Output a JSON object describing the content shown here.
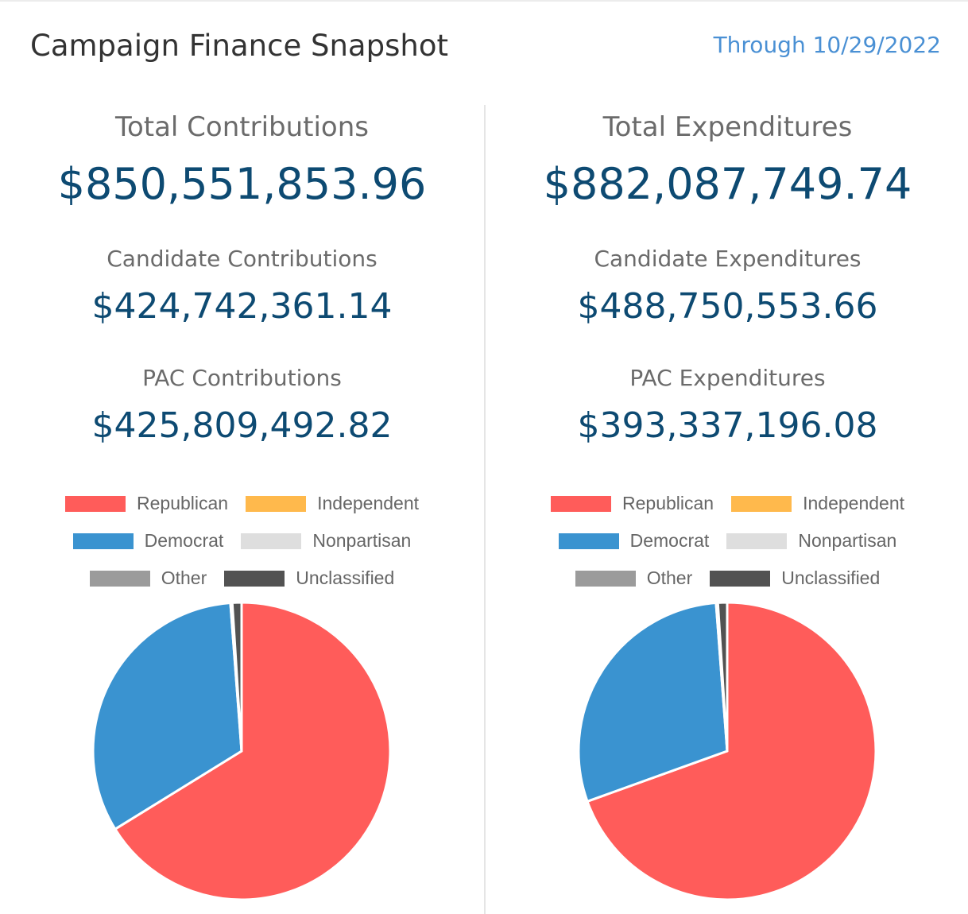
{
  "header": {
    "title": "Campaign Finance Snapshot",
    "through": "Through 10/29/2022"
  },
  "colors": {
    "Republican": "#ff5c5a",
    "Independent": "#ffb94c",
    "Democrat": "#3a93d0",
    "Nonpartisan": "#dedede",
    "Other": "#9b9b9b",
    "Unclassified": "#525252"
  },
  "contributions": {
    "total_label": "Total Contributions",
    "total_value": "$850,551,853.96",
    "candidate_label": "Candidate Contributions",
    "candidate_value": "$424,742,361.14",
    "pac_label": "PAC Contributions",
    "pac_value": "$425,809,492.82"
  },
  "expenditures": {
    "total_label": "Total Expenditures",
    "total_value": "$882,087,749.74",
    "candidate_label": "Candidate Expenditures",
    "candidate_value": "$488,750,553.66",
    "pac_label": "PAC Expenditures",
    "pac_value": "$393,337,196.08"
  },
  "legend_rows": [
    [
      "Republican",
      "Independent"
    ],
    [
      "Democrat",
      "Nonpartisan"
    ],
    [
      "Other",
      "Unclassified"
    ]
  ],
  "chart_data": [
    {
      "type": "pie",
      "categories": [
        "Republican",
        "Independent",
        "Democrat",
        "Nonpartisan",
        "Other",
        "Unclassified"
      ],
      "values": [
        66.2,
        0.0,
        32.6,
        0.0,
        0.2,
        1.0
      ],
      "legend": "top"
    },
    {
      "type": "pie",
      "categories": [
        "Republican",
        "Independent",
        "Democrat",
        "Nonpartisan",
        "Other",
        "Unclassified"
      ],
      "values": [
        69.5,
        0.0,
        29.3,
        0.0,
        0.2,
        1.0
      ],
      "legend": "top"
    }
  ]
}
